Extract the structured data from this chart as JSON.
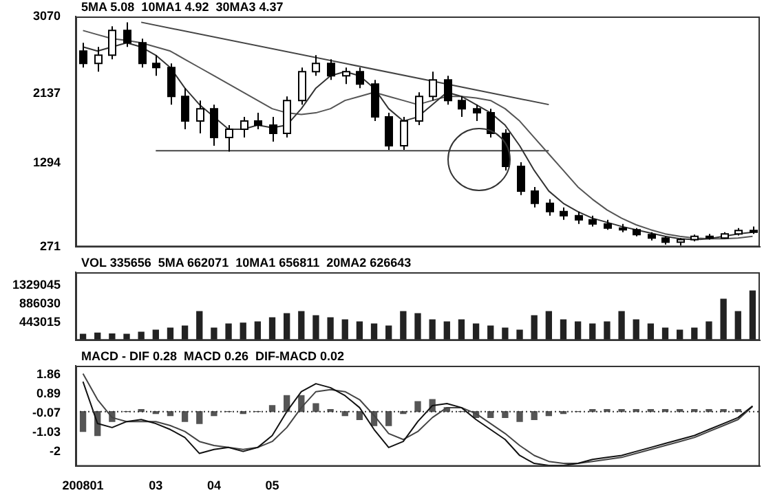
{
  "chart_data": [
    {
      "type": "candlestick",
      "categories": [
        "200801",
        null,
        null,
        null,
        null,
        "03",
        null,
        null,
        null,
        "04",
        null,
        null,
        null,
        "05",
        null,
        null,
        null,
        null,
        null,
        null,
        null,
        null,
        null,
        null,
        null,
        null,
        null,
        null,
        null,
        null,
        null,
        null,
        null,
        null,
        null,
        null,
        null,
        null,
        null,
        null,
        null,
        null,
        null,
        null,
        null,
        null,
        null
      ],
      "ylim": [
        271,
        3070
      ],
      "yticks": [
        271,
        1294,
        2137,
        3070
      ],
      "tick_labels": "y",
      "annotations": [
        "5MA 5.08  10MA1 4.92  30MA3 4.37"
      ],
      "series": [
        {
          "type": "candlestick",
          "color": "#000000",
          "ohlc": [
            [
              2650,
              2750,
              2450,
              2500
            ],
            [
              2500,
              2700,
              2400,
              2600
            ],
            [
              2600,
              2950,
              2550,
              2900
            ],
            [
              2900,
              3000,
              2700,
              2750
            ],
            [
              2750,
              2800,
              2450,
              2500
            ],
            [
              2500,
              2600,
              2350,
              2450
            ],
            [
              2450,
              2500,
              2000,
              2100
            ],
            [
              2100,
              2200,
              1700,
              1800
            ],
            [
              1800,
              2050,
              1650,
              1950
            ],
            [
              1950,
              2000,
              1500,
              1600
            ],
            [
              1600,
              1750,
              1430,
              1700
            ],
            [
              1700,
              1850,
              1600,
              1800
            ],
            [
              1800,
              1900,
              1700,
              1750
            ],
            [
              1750,
              1850,
              1550,
              1650
            ],
            [
              1650,
              2100,
              1600,
              2050
            ],
            [
              2050,
              2450,
              2000,
              2400
            ],
            [
              2400,
              2600,
              2350,
              2500
            ],
            [
              2500,
              2550,
              2300,
              2350
            ],
            [
              2350,
              2450,
              2250,
              2400
            ],
            [
              2400,
              2450,
              2200,
              2250
            ],
            [
              2250,
              2300,
              1800,
              1850
            ],
            [
              1850,
              1900,
              1450,
              1500
            ],
            [
              1500,
              1850,
              1450,
              1800
            ],
            [
              1800,
              2150,
              1750,
              2100
            ],
            [
              2100,
              2400,
              2050,
              2300
            ],
            [
              2300,
              2350,
              2000,
              2050
            ],
            [
              2050,
              2100,
              1850,
              1950
            ],
            [
              1950,
              2000,
              1800,
              1900
            ],
            [
              1900,
              1950,
              1600,
              1650
            ],
            [
              1650,
              1700,
              1200,
              1250
            ],
            [
              1250,
              1300,
              900,
              950
            ],
            [
              950,
              1000,
              750,
              800
            ],
            [
              800,
              850,
              650,
              700
            ],
            [
              700,
              750,
              600,
              650
            ],
            [
              650,
              700,
              550,
              600
            ],
            [
              600,
              650,
              520,
              550
            ],
            [
              550,
              600,
              480,
              500
            ],
            [
              500,
              550,
              450,
              480
            ],
            [
              480,
              500,
              400,
              420
            ],
            [
              420,
              450,
              350,
              380
            ],
            [
              380,
              400,
              300,
              330
            ],
            [
              330,
              380,
              290,
              360
            ],
            [
              360,
              420,
              340,
              400
            ],
            [
              400,
              430,
              360,
              380
            ],
            [
              380,
              450,
              370,
              430
            ],
            [
              430,
              500,
              410,
              470
            ],
            [
              470,
              520,
              430,
              450
            ]
          ]
        },
        {
          "type": "line",
          "color": "#333333",
          "values": [
            2700,
            2650,
            2700,
            2750,
            2700,
            2600,
            2450,
            2200,
            2000,
            1850,
            1700,
            1700,
            1750,
            1720,
            1750,
            1950,
            2200,
            2350,
            2400,
            2350,
            2200,
            1950,
            1800,
            1850,
            2000,
            2150,
            2100,
            2000,
            1900,
            1750,
            1500,
            1200,
            950,
            800,
            700,
            620,
            570,
            520,
            480,
            440,
            400,
            370,
            360,
            370,
            400,
            430,
            450
          ]
        },
        {
          "type": "line",
          "color": "#555555",
          "values": [
            2900,
            2850,
            2800,
            2780,
            2750,
            2700,
            2650,
            2550,
            2450,
            2350,
            2250,
            2150,
            2050,
            1950,
            1900,
            1880,
            1900,
            1950,
            2050,
            2100,
            2150,
            2100,
            2050,
            2000,
            2050,
            2100,
            2100,
            2080,
            2050,
            1950,
            1800,
            1600,
            1400,
            1200,
            1000,
            850,
            720,
            620,
            540,
            480,
            430,
            400,
            380,
            370,
            370,
            380,
            400
          ]
        },
        {
          "type": "line",
          "color": "#444444",
          "values": [
            null,
            null,
            null,
            null,
            3000,
            null,
            null,
            null,
            null,
            null,
            null,
            null,
            null,
            null,
            null,
            null,
            null,
            null,
            null,
            null,
            null,
            null,
            null,
            null,
            null,
            null,
            null,
            null,
            null,
            null,
            null,
            null,
            2000,
            null,
            null,
            null,
            null,
            null,
            null,
            null,
            null,
            null,
            null,
            null,
            null,
            null,
            null
          ]
        },
        {
          "type": "line",
          "color": "#444444",
          "values": [
            null,
            null,
            null,
            null,
            null,
            1440,
            null,
            null,
            null,
            null,
            null,
            null,
            null,
            null,
            null,
            null,
            null,
            null,
            null,
            null,
            null,
            null,
            null,
            null,
            null,
            null,
            null,
            null,
            null,
            null,
            null,
            null,
            1440,
            null,
            null,
            null,
            null,
            null,
            null,
            null,
            null,
            null,
            null,
            null,
            null,
            null,
            null
          ]
        }
      ]
    },
    {
      "type": "bar",
      "categories": [
        "200801",
        null,
        null,
        null,
        null,
        "03",
        null,
        null,
        null,
        "04",
        null,
        null,
        null,
        "05",
        null,
        null,
        null,
        null,
        null,
        null,
        null,
        null,
        null,
        null,
        null,
        null,
        null,
        null,
        null,
        null,
        null,
        null,
        null,
        null,
        null,
        null,
        null,
        null,
        null,
        null,
        null,
        null,
        null,
        null,
        null,
        null,
        null
      ],
      "ylim": [
        0,
        1650000
      ],
      "yticks": [
        443015,
        886030,
        1329045
      ],
      "tick_labels": "y",
      "color": "#222222",
      "annotations": [
        "VOL 335656  5MA 662071  10MA1 656811  20MA2 626643"
      ],
      "values": [
        150000,
        180000,
        160000,
        150000,
        200000,
        250000,
        300000,
        350000,
        700000,
        300000,
        400000,
        420000,
        450000,
        550000,
        650000,
        700000,
        600000,
        550000,
        500000,
        450000,
        400000,
        350000,
        700000,
        650000,
        500000,
        450000,
        500000,
        400000,
        350000,
        300000,
        250000,
        600000,
        700000,
        500000,
        450000,
        400000,
        450000,
        700000,
        500000,
        400000,
        300000,
        250000,
        300000,
        450000,
        1000000,
        700000,
        1200000
      ]
    },
    {
      "type": "bar",
      "categories": [
        "200801",
        null,
        null,
        null,
        null,
        "03",
        null,
        null,
        null,
        "04",
        null,
        null,
        null,
        "05",
        null,
        null,
        null,
        null,
        null,
        null,
        null,
        null,
        null,
        null,
        null,
        null,
        null,
        null,
        null,
        null,
        null,
        null,
        null,
        null,
        null,
        null,
        null,
        null,
        null,
        null,
        null,
        null,
        null,
        null,
        null,
        null,
        null
      ],
      "ylim": [
        -2.75,
        2.3
      ],
      "yticks": [
        -2.0,
        -1.03,
        -0.07,
        0.89,
        1.86
      ],
      "annotations": [
        "MACD - DIF 0.28  MACD 0.26  DIF-MACD 0.02"
      ],
      "ref_lines": [
        {
          "axis": "y",
          "value": 0,
          "line_style": "dotted"
        }
      ],
      "series": [
        {
          "type": "bar",
          "color": "#555555",
          "values": [
            -1.0,
            -1.2,
            -0.5,
            0.0,
            0.1,
            -0.1,
            -0.2,
            -0.5,
            -0.6,
            -0.2,
            0.0,
            -0.1,
            0.0,
            0.3,
            0.8,
            0.8,
            0.4,
            0.1,
            -0.2,
            -0.4,
            -0.7,
            -0.7,
            -0.1,
            0.5,
            0.6,
            0.2,
            0.0,
            -0.3,
            -0.3,
            -0.3,
            -0.5,
            -0.4,
            -0.2,
            -0.1,
            0.0,
            0.1,
            0.1,
            0.1,
            0.1,
            0.1,
            0.1,
            0.1,
            0.1,
            0.1,
            0.1,
            0.1,
            null
          ]
        },
        {
          "type": "line",
          "color": "#111111",
          "values": [
            1.5,
            -0.6,
            -0.8,
            -0.5,
            -0.4,
            -0.6,
            -0.9,
            -1.3,
            -2.1,
            -1.9,
            -1.8,
            -2.0,
            -1.8,
            -1.2,
            0.0,
            1.0,
            1.4,
            1.2,
            0.8,
            0.2,
            -0.9,
            -1.8,
            -1.5,
            -0.5,
            0.3,
            0.4,
            0.2,
            -0.4,
            -0.9,
            -1.4,
            -2.2,
            -2.6,
            -2.7,
            -2.7,
            -2.6,
            -2.4,
            -2.3,
            -2.2,
            -2.0,
            -1.8,
            -1.6,
            -1.4,
            -1.2,
            -0.9,
            -0.6,
            -0.3,
            0.28
          ]
        },
        {
          "type": "line",
          "color": "#444444",
          "values": [
            1.9,
            0.6,
            -0.3,
            -0.5,
            -0.5,
            -0.5,
            -0.7,
            -1.0,
            -1.5,
            -1.7,
            -1.8,
            -1.9,
            -1.8,
            -1.5,
            -0.8,
            0.2,
            1.0,
            1.1,
            1.0,
            0.6,
            -0.2,
            -1.1,
            -1.4,
            -1.0,
            -0.3,
            0.2,
            0.2,
            -0.1,
            -0.6,
            -1.1,
            -1.7,
            -2.2,
            -2.5,
            -2.6,
            -2.6,
            -2.5,
            -2.4,
            -2.3,
            -2.1,
            -1.9,
            -1.7,
            -1.5,
            -1.3,
            -1.0,
            -0.7,
            -0.4,
            0.26
          ]
        }
      ]
    }
  ]
}
